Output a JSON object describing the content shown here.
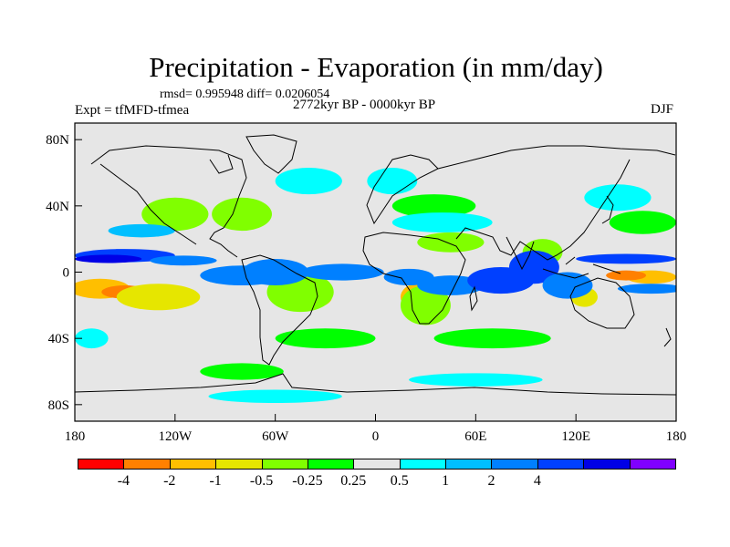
{
  "header": {
    "title": "Precipitation - Evaporation (in mm/day)",
    "stats": "rmsd= 0.995948 diff= 0.0206054",
    "experiment": "Expt = tfMFD-tfmea",
    "period": "2772kyr BP - 0000kyr BP",
    "season": "DJF"
  },
  "map": {
    "projection": "cylindrical-equidistant",
    "lon_range": [
      -180,
      180
    ],
    "lat_range": [
      -90,
      90
    ],
    "background_color": "#e6e6e6",
    "y_ticks": [
      {
        "lat": 80,
        "label": "80N"
      },
      {
        "lat": 40,
        "label": "40N"
      },
      {
        "lat": 0,
        "label": "0"
      },
      {
        "lat": -40,
        "label": "40S"
      },
      {
        "lat": -80,
        "label": "80S"
      }
    ],
    "x_ticks": [
      {
        "lon": -180,
        "label": "180"
      },
      {
        "lon": -120,
        "label": "120W"
      },
      {
        "lon": -60,
        "label": "60W"
      },
      {
        "lon": 0,
        "label": "0"
      },
      {
        "lon": 60,
        "label": "60E"
      },
      {
        "lon": 120,
        "label": "120E"
      },
      {
        "lon": 180,
        "label": "180"
      }
    ],
    "field": [
      {
        "lon": -165,
        "lat": -10,
        "rx": 18,
        "ry": 6,
        "value": -4
      },
      {
        "lon": -150,
        "lat": -12,
        "rx": 14,
        "ry": 4,
        "value": -6
      },
      {
        "lon": -130,
        "lat": -15,
        "rx": 25,
        "ry": 8,
        "value": -1.5
      },
      {
        "lon": -40,
        "lat": -15,
        "rx": 14,
        "ry": 7,
        "value": -3
      },
      {
        "lon": -45,
        "lat": -12,
        "rx": 20,
        "ry": 12,
        "value": -1
      },
      {
        "lon": 25,
        "lat": -15,
        "rx": 10,
        "ry": 8,
        "value": -3
      },
      {
        "lon": 30,
        "lat": -20,
        "rx": 15,
        "ry": 12,
        "value": -0.7
      },
      {
        "lon": 165,
        "lat": -3,
        "rx": 15,
        "ry": 4,
        "value": -3
      },
      {
        "lon": 150,
        "lat": -2,
        "rx": 12,
        "ry": 3,
        "value": -5
      },
      {
        "lon": 125,
        "lat": -15,
        "rx": 8,
        "ry": 6,
        "value": -1.5
      },
      {
        "lon": 100,
        "lat": 12,
        "rx": 12,
        "ry": 8,
        "value": -1
      },
      {
        "lon": 45,
        "lat": 18,
        "rx": 20,
        "ry": 6,
        "value": -0.7
      },
      {
        "lon": -120,
        "lat": 35,
        "rx": 20,
        "ry": 10,
        "value": -0.7
      },
      {
        "lon": -80,
        "lat": 35,
        "rx": 18,
        "ry": 10,
        "value": -0.7
      },
      {
        "lon": 35,
        "lat": 40,
        "rx": 25,
        "ry": 7,
        "value": -0.5
      },
      {
        "lon": 160,
        "lat": 30,
        "rx": 20,
        "ry": 7,
        "value": -0.5
      },
      {
        "lon": -30,
        "lat": -40,
        "rx": 30,
        "ry": 6,
        "value": -0.5
      },
      {
        "lon": 70,
        "lat": -40,
        "rx": 35,
        "ry": 6,
        "value": -0.5
      },
      {
        "lon": -80,
        "lat": -60,
        "rx": 25,
        "ry": 5,
        "value": -0.5
      },
      {
        "lon": -150,
        "lat": 10,
        "rx": 30,
        "ry": 4,
        "value": 2
      },
      {
        "lon": -160,
        "lat": 8,
        "rx": 20,
        "ry": 2.5,
        "value": 4
      },
      {
        "lon": -115,
        "lat": 7,
        "rx": 20,
        "ry": 3,
        "value": 1.5
      },
      {
        "lon": -80,
        "lat": -2,
        "rx": 25,
        "ry": 6,
        "value": 1
      },
      {
        "lon": -60,
        "lat": 0,
        "rx": 20,
        "ry": 8,
        "value": 1.5
      },
      {
        "lon": -20,
        "lat": 0,
        "rx": 25,
        "ry": 5,
        "value": 1.5
      },
      {
        "lon": 20,
        "lat": -3,
        "rx": 15,
        "ry": 5,
        "value": 1
      },
      {
        "lon": 45,
        "lat": -8,
        "rx": 20,
        "ry": 6,
        "value": 1.5
      },
      {
        "lon": 75,
        "lat": -5,
        "rx": 20,
        "ry": 8,
        "value": 2
      },
      {
        "lon": 95,
        "lat": 3,
        "rx": 15,
        "ry": 10,
        "value": 3
      },
      {
        "lon": 115,
        "lat": -8,
        "rx": 15,
        "ry": 8,
        "value": 1.5
      },
      {
        "lon": 150,
        "lat": 8,
        "rx": 30,
        "ry": 3,
        "value": 2
      },
      {
        "lon": 165,
        "lat": -10,
        "rx": 20,
        "ry": 3,
        "value": 1.5
      },
      {
        "lon": -140,
        "lat": 25,
        "rx": 20,
        "ry": 4,
        "value": 0.7
      },
      {
        "lon": 40,
        "lat": 30,
        "rx": 30,
        "ry": 6,
        "value": 0.4
      },
      {
        "lon": 10,
        "lat": 55,
        "rx": 15,
        "ry": 8,
        "value": 0.4
      },
      {
        "lon": 145,
        "lat": 45,
        "rx": 20,
        "ry": 8,
        "value": 0.4
      },
      {
        "lon": -40,
        "lat": 55,
        "rx": 20,
        "ry": 8,
        "value": 0.4
      },
      {
        "lon": -170,
        "lat": -40,
        "rx": 10,
        "ry": 6,
        "value": 0.4
      },
      {
        "lon": -60,
        "lat": -75,
        "rx": 40,
        "ry": 4,
        "value": 0.4
      },
      {
        "lon": 60,
        "lat": -65,
        "rx": 40,
        "ry": 4,
        "value": 0.4
      }
    ]
  },
  "colorbar": {
    "colors": [
      "#ff0000",
      "#ff8000",
      "#ffbf00",
      "#e6e600",
      "#80ff00",
      "#00ff00",
      "#e6e6e6",
      "#00ffff",
      "#00bfff",
      "#0080ff",
      "#0040ff",
      "#0000e6",
      "#8000ff"
    ],
    "labels": [
      "-4",
      "-2",
      "-1",
      "-0.5",
      "-0.25",
      "0.25",
      "0.5",
      "1",
      "2",
      "4"
    ],
    "boundaries": [
      -6,
      -4,
      -2,
      -1,
      -0.5,
      -0.25,
      0.25,
      0.5,
      1,
      2,
      4,
      6
    ]
  }
}
